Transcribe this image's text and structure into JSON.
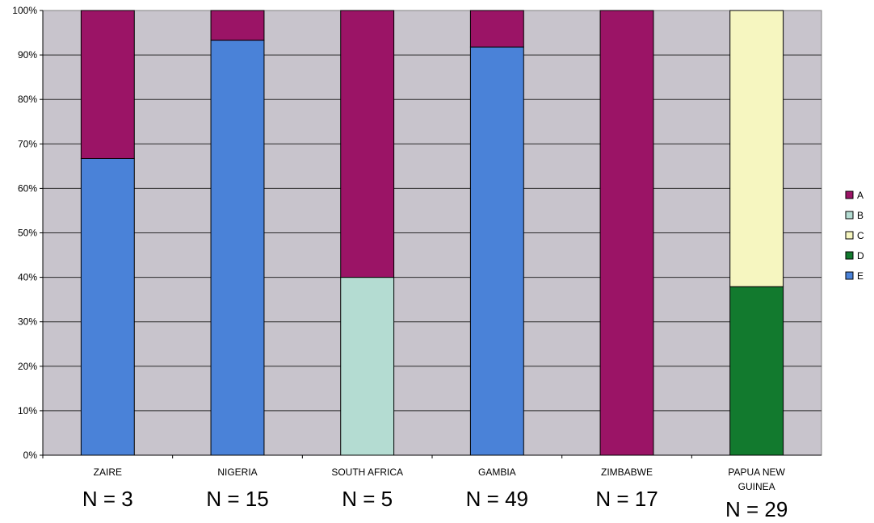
{
  "chart_data": {
    "type": "bar",
    "stacked": true,
    "percent": true,
    "categories": [
      "ZAIRE",
      "NIGERIA",
      "SOUTH AFRICA",
      "GAMBIA",
      "ZIMBABWE",
      "PAPUA NEW GUINEA"
    ],
    "category_lines": [
      [
        "ZAIRE"
      ],
      [
        "NIGERIA"
      ],
      [
        "SOUTH AFRICA"
      ],
      [
        "GAMBIA"
      ],
      [
        "ZIMBABWE"
      ],
      [
        "PAPUA NEW",
        "GUINEA"
      ]
    ],
    "sample_labels": [
      "N = 3",
      "N = 15",
      "N = 5",
      "N = 49",
      "N = 17",
      "N = 29"
    ],
    "series": [
      {
        "name": "E",
        "color": "#4a82d8",
        "values": [
          66.7,
          93.3,
          0,
          91.8,
          0,
          0
        ]
      },
      {
        "name": "D",
        "color": "#127a2e",
        "values": [
          0,
          0,
          0,
          0,
          0,
          37.9
        ]
      },
      {
        "name": "C",
        "color": "#f6f6c0",
        "values": [
          0,
          0,
          0,
          0,
          0,
          62.1
        ]
      },
      {
        "name": "B",
        "color": "#b4dcd2",
        "values": [
          0,
          0,
          40,
          0,
          0,
          0
        ]
      },
      {
        "name": "A",
        "color": "#9b1466",
        "values": [
          33.3,
          6.7,
          60,
          8.2,
          100,
          0
        ]
      }
    ],
    "legend_order": [
      "A",
      "B",
      "C",
      "D",
      "E"
    ],
    "legend_position": "right",
    "yticks": [
      "0%",
      "10%",
      "20%",
      "30%",
      "40%",
      "50%",
      "60%",
      "70%",
      "80%",
      "90%",
      "100%"
    ],
    "ylim": [
      0,
      100
    ],
    "grid": true,
    "plot_background": "#c8c4cc",
    "title": "",
    "xlabel": "",
    "ylabel": ""
  }
}
